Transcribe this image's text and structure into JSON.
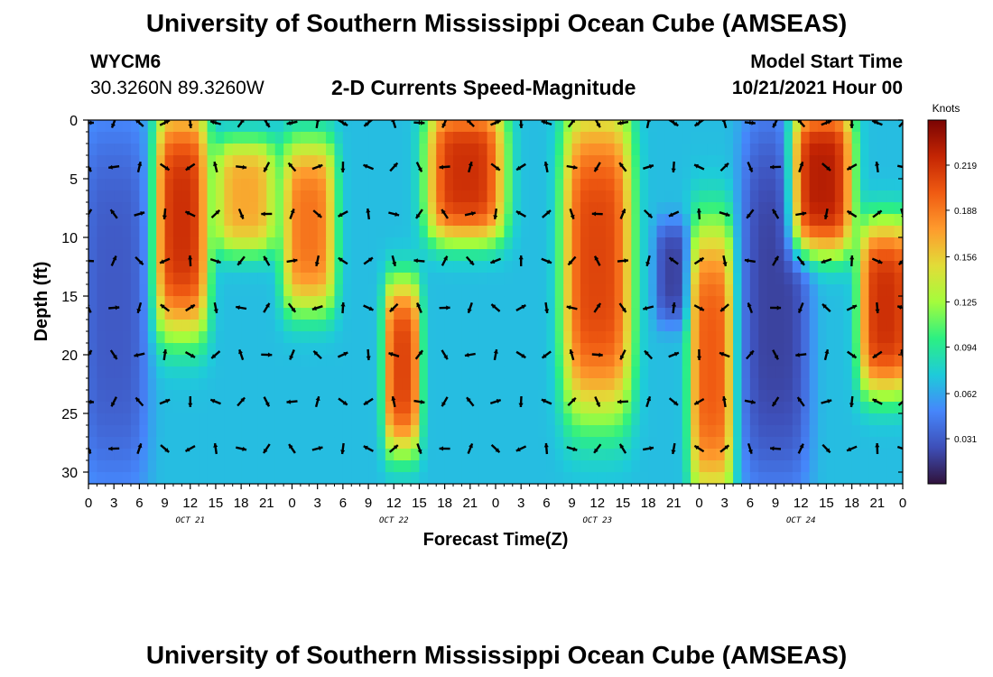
{
  "header": {
    "title": "University of Southern Mississippi Ocean Cube (AMSEAS)",
    "station": "WYCM6",
    "coordinates": "30.3260N  89.3260W",
    "subtitle": "2-D Currents Speed-Magnitude",
    "model_start_label": "Model Start Time",
    "model_start_value": "10/21/2021 Hour 00"
  },
  "footer": {
    "title": "University of Southern Mississippi Ocean Cube (AMSEAS)"
  },
  "chart_data": {
    "type": "heatmap",
    "title": "2-D Currents Speed-Magnitude",
    "xlabel": "Forecast Time(Z)",
    "ylabel": "Depth (ft)",
    "xlim": [
      0,
      96
    ],
    "ylim": [
      31,
      0
    ],
    "x_tick_labels": [
      "0",
      "3",
      "6",
      "9",
      "12",
      "15",
      "18",
      "21",
      "0",
      "3",
      "6",
      "9",
      "12",
      "15",
      "18",
      "21",
      "0",
      "3",
      "6",
      "9",
      "12",
      "15",
      "18",
      "21",
      "0",
      "3",
      "6",
      "9",
      "12",
      "15",
      "18",
      "21",
      "0"
    ],
    "y_tick_values": [
      0,
      5,
      10,
      15,
      20,
      25,
      30
    ],
    "date_labels": [
      {
        "label": "OCT 21",
        "hour": 12
      },
      {
        "label": "OCT 22",
        "hour": 36
      },
      {
        "label": "OCT 23",
        "hour": 60
      },
      {
        "label": "OCT 24",
        "hour": 84
      }
    ],
    "colorbar": {
      "unit": "Knots",
      "min": 0.0,
      "max": 0.25,
      "tick_values": [
        0.219,
        0.188,
        0.156,
        0.125,
        0.094,
        0.062,
        0.031
      ],
      "tick_labels": [
        "0.219",
        "0.188",
        "0.156",
        "0.125",
        "0.094",
        "0.062",
        "0.031"
      ],
      "colors": [
        "#30123b",
        "#3e4fb8",
        "#4686fb",
        "#1ecbda",
        "#2cf082",
        "#a4fc3c",
        "#e2dc38",
        "#fe9b2d",
        "#f05b12",
        "#c42503",
        "#7a0403"
      ]
    },
    "speed_bands": [
      {
        "hours": [
          0,
          6
        ],
        "depth_ft": [
          0,
          31
        ],
        "speed": 0.03
      },
      {
        "hours": [
          9,
          13
        ],
        "depth_ft": [
          0,
          17
        ],
        "speed": 0.22
      },
      {
        "hours": [
          16,
          21
        ],
        "depth_ft": [
          3,
          10
        ],
        "speed": 0.17
      },
      {
        "hours": [
          24,
          28
        ],
        "depth_ft": [
          3,
          15
        ],
        "speed": 0.19
      },
      {
        "hours": [
          36,
          38
        ],
        "depth_ft": [
          15,
          27
        ],
        "speed": 0.21
      },
      {
        "hours": [
          41,
          48
        ],
        "depth_ft": [
          0,
          9
        ],
        "speed": 0.22
      },
      {
        "hours": [
          57,
          63
        ],
        "depth_ft": [
          0,
          24
        ],
        "speed": 0.21
      },
      {
        "hours": [
          68,
          70
        ],
        "depth_ft": [
          10,
          16
        ],
        "speed": 0.02
      },
      {
        "hours": [
          72,
          75
        ],
        "depth_ft": [
          10,
          31
        ],
        "speed": 0.2
      },
      {
        "hours": [
          78,
          84
        ],
        "depth_ft": [
          0,
          31
        ],
        "speed": 0.02
      },
      {
        "hours": [
          84,
          89
        ],
        "depth_ft": [
          0,
          10
        ],
        "speed": 0.23
      },
      {
        "hours": [
          92,
          96
        ],
        "depth_ft": [
          10,
          22
        ],
        "speed": 0.22
      }
    ],
    "vector_depths_ft": [
      0,
      4,
      8,
      12,
      16,
      20,
      24,
      28
    ],
    "vector_hour_step": 3
  }
}
